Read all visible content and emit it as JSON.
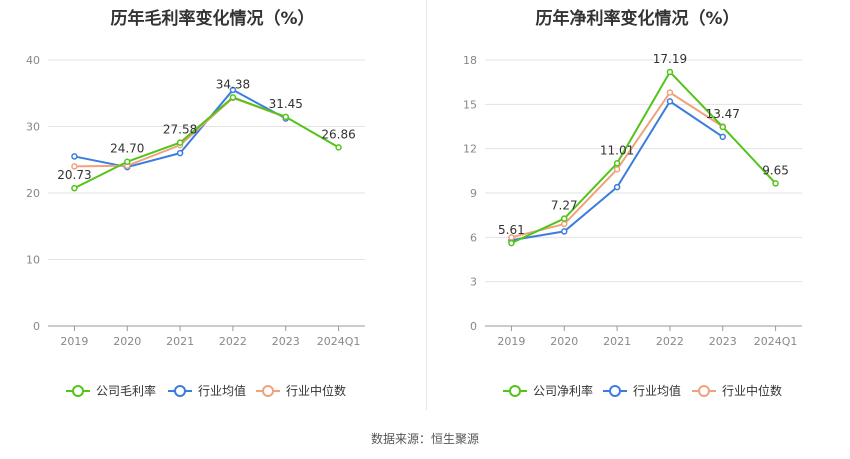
{
  "source_text": "数据来源：恒生聚源",
  "chart_data": [
    {
      "type": "line",
      "title": "历年毛利率变化情况（%）",
      "categories": [
        "2019",
        "2020",
        "2021",
        "2022",
        "2023",
        "2024Q1"
      ],
      "ylim": [
        0,
        40
      ],
      "yticks": [
        0,
        10,
        20,
        30,
        40
      ],
      "grid": true,
      "legend_position": "bottom",
      "series": [
        {
          "name": "公司毛利率",
          "color": "#52c41a",
          "labeled": true,
          "values": [
            20.73,
            24.7,
            27.58,
            34.38,
            31.45,
            26.86
          ]
        },
        {
          "name": "行业均值",
          "color": "#3b7ddd",
          "labeled": false,
          "values": [
            25.5,
            23.9,
            26.0,
            35.5,
            31.2,
            null
          ]
        },
        {
          "name": "行业中位数",
          "color": "#f0a27c",
          "labeled": false,
          "values": [
            24.0,
            24.1,
            27.2,
            34.3,
            31.4,
            null
          ]
        }
      ]
    },
    {
      "type": "line",
      "title": "历年净利率变化情况（%）",
      "categories": [
        "2019",
        "2020",
        "2021",
        "2022",
        "2023",
        "2024Q1"
      ],
      "ylim": [
        0,
        18
      ],
      "yticks": [
        0,
        3,
        6,
        9,
        12,
        15,
        18
      ],
      "grid": true,
      "legend_position": "bottom",
      "series": [
        {
          "name": "公司净利率",
          "color": "#52c41a",
          "labeled": true,
          "values": [
            5.61,
            7.27,
            11.01,
            17.19,
            13.47,
            9.65
          ]
        },
        {
          "name": "行业均值",
          "color": "#3b7ddd",
          "labeled": false,
          "values": [
            5.8,
            6.4,
            9.4,
            15.2,
            12.8,
            null
          ]
        },
        {
          "name": "行业中位数",
          "color": "#f0a27c",
          "labeled": false,
          "values": [
            6.0,
            6.9,
            10.6,
            15.8,
            13.5,
            null
          ]
        }
      ]
    }
  ]
}
